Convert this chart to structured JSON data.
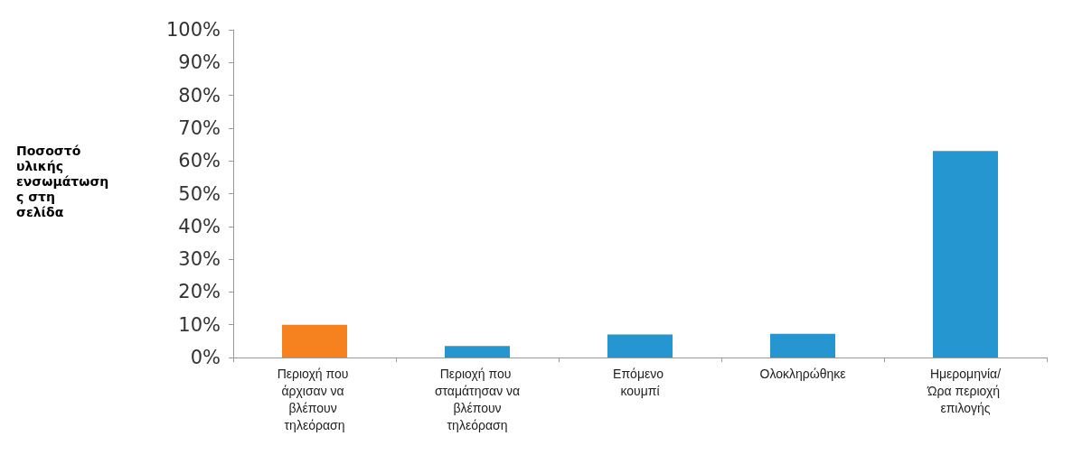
{
  "chart_data": {
    "type": "bar",
    "ylabel": "Ποσοστό υλικής ενσωμάτωσης στη σελίδα",
    "categories": [
      "Περιοχή που άρχισαν να βλέπουν τηλεόραση",
      "Περιοχή που σταμάτησαν να βλέπουν τηλεόραση",
      "Επόμενο κουμπί",
      "Ολοκληρώθηκε",
      "Ημερομηνία/Ώρα περιοχή επιλογής"
    ],
    "values": [
      10,
      3.5,
      7,
      7.2,
      63
    ],
    "colors": [
      "#f5821f",
      "#2596d0",
      "#2596d0",
      "#2596d0",
      "#2596d0"
    ],
    "ylim": [
      0,
      100
    ],
    "yticks": [
      {
        "value": 0,
        "label": "0%"
      },
      {
        "value": 10,
        "label": "10%"
      },
      {
        "value": 20,
        "label": "20%"
      },
      {
        "value": 30,
        "label": "30%"
      },
      {
        "value": 40,
        "label": "40%"
      },
      {
        "value": 50,
        "label": "50%"
      },
      {
        "value": 60,
        "label": "60%"
      },
      {
        "value": 70,
        "label": "70%"
      },
      {
        "value": 80,
        "label": "80%"
      },
      {
        "value": 90,
        "label": "90%"
      },
      {
        "value": 100,
        "label": "100%"
      }
    ],
    "grid": false
  }
}
